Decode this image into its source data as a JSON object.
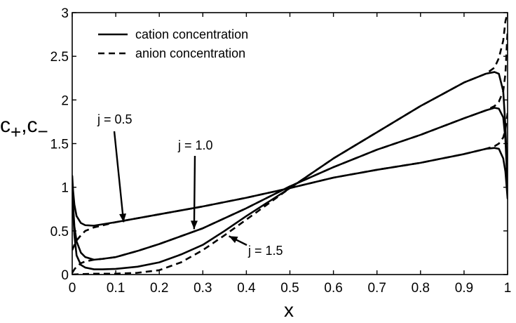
{
  "chart_data": {
    "type": "line",
    "xlabel": "x",
    "ylabel_main": "c",
    "ylabel_sub1": "+",
    "ylabel_sep": ",c",
    "ylabel_sub2": "−",
    "xlim": [
      0,
      1
    ],
    "ylim": [
      0,
      3
    ],
    "x_ticks": [
      0,
      0.1,
      0.2,
      0.3,
      0.4,
      0.5,
      0.6,
      0.7,
      0.8,
      0.9,
      1
    ],
    "x_tick_labels": [
      "0",
      "0.1",
      "0.2",
      "0.3",
      "0.4",
      "0.5",
      "0.6",
      "0.7",
      "0.8",
      "0.9",
      "1"
    ],
    "y_ticks": [
      0,
      0.5,
      1,
      1.5,
      2,
      2.5,
      3
    ],
    "y_tick_labels": [
      "0",
      "0.5",
      "1",
      "1.5",
      "2",
      "2.5",
      "3"
    ],
    "grid": false,
    "legend_position": "top-left",
    "legend": [
      {
        "label": "cation concentration",
        "style": "solid"
      },
      {
        "label": "anion concentration",
        "style": "dashed"
      }
    ],
    "annotations": [
      {
        "text": "j = 0.5",
        "points_to": [
          0.118,
          0.6
        ]
      },
      {
        "text": "j = 1.0",
        "points_to": [
          0.28,
          0.52
        ]
      },
      {
        "text": "j = 1.5",
        "points_to": [
          0.36,
          0.44
        ]
      }
    ],
    "series": [
      {
        "style": "solid",
        "x": [
          0,
          0.002,
          0.005,
          0.01,
          0.02,
          0.03,
          0.05,
          0.1,
          0.2,
          0.3,
          0.4,
          0.5,
          0.6,
          0.7,
          0.8,
          0.9,
          0.95,
          0.97,
          0.98,
          0.99,
          0.995,
          1.0
        ],
        "y": [
          1.13,
          0.96,
          0.8,
          0.67,
          0.59,
          0.565,
          0.56,
          0.6,
          0.69,
          0.78,
          0.88,
          0.99,
          1.11,
          1.2,
          1.28,
          1.38,
          1.44,
          1.45,
          1.44,
          1.33,
          1.18,
          0.87
        ]
      },
      {
        "style": "dashed",
        "x": [
          0,
          0.005,
          0.01,
          0.02,
          0.03,
          0.05,
          0.1,
          0.2,
          0.3,
          0.4,
          0.5,
          0.6,
          0.7,
          0.8,
          0.9,
          0.95,
          0.97,
          0.98,
          0.99,
          0.995,
          1.0
        ],
        "y": [
          0.28,
          0.34,
          0.39,
          0.45,
          0.5,
          0.54,
          0.6,
          0.69,
          0.78,
          0.88,
          0.99,
          1.11,
          1.2,
          1.28,
          1.38,
          1.44,
          1.47,
          1.5,
          1.57,
          1.66,
          1.85
        ]
      },
      {
        "style": "solid",
        "x": [
          0,
          0.002,
          0.005,
          0.01,
          0.02,
          0.03,
          0.05,
          0.07,
          0.1,
          0.15,
          0.2,
          0.3,
          0.4,
          0.5,
          0.6,
          0.7,
          0.8,
          0.9,
          0.95,
          0.97,
          0.98,
          0.99,
          0.995,
          1.0
        ],
        "y": [
          1.05,
          0.8,
          0.55,
          0.38,
          0.25,
          0.2,
          0.17,
          0.18,
          0.2,
          0.27,
          0.35,
          0.53,
          0.76,
          1.01,
          1.23,
          1.43,
          1.6,
          1.79,
          1.88,
          1.91,
          1.9,
          1.8,
          1.55,
          1.0
        ]
      },
      {
        "style": "dashed",
        "x": [
          0,
          0.005,
          0.01,
          0.02,
          0.03,
          0.05,
          0.07,
          0.1,
          0.15,
          0.2,
          0.3,
          0.4,
          0.5,
          0.6,
          0.7,
          0.8,
          0.9,
          0.95,
          0.97,
          0.98,
          0.99,
          0.995,
          1.0
        ],
        "y": [
          0.02,
          0.06,
          0.09,
          0.13,
          0.15,
          0.17,
          0.18,
          0.2,
          0.27,
          0.35,
          0.53,
          0.76,
          1.01,
          1.23,
          1.43,
          1.6,
          1.79,
          1.88,
          1.93,
          1.98,
          2.1,
          2.3,
          2.8
        ]
      },
      {
        "style": "solid",
        "x": [
          0,
          0.005,
          0.01,
          0.02,
          0.03,
          0.05,
          0.07,
          0.1,
          0.15,
          0.2,
          0.25,
          0.3,
          0.35,
          0.4,
          0.5,
          0.6,
          0.7,
          0.8,
          0.9,
          0.95,
          0.97,
          0.98,
          0.99,
          0.995,
          1.0
        ],
        "y": [
          0.95,
          0.45,
          0.22,
          0.11,
          0.08,
          0.06,
          0.06,
          0.065,
          0.09,
          0.14,
          0.23,
          0.34,
          0.5,
          0.67,
          0.99,
          1.33,
          1.63,
          1.93,
          2.2,
          2.3,
          2.32,
          2.3,
          2.1,
          1.7,
          1.0
        ]
      },
      {
        "style": "dashed",
        "x": [
          0,
          0.02,
          0.05,
          0.1,
          0.15,
          0.2,
          0.25,
          0.3,
          0.35,
          0.4,
          0.5,
          0.6,
          0.7,
          0.8,
          0.9,
          0.95,
          0.97,
          0.98,
          0.99,
          0.995,
          1.0
        ],
        "y": [
          0.0,
          0.005,
          0.01,
          0.01,
          0.02,
          0.05,
          0.14,
          0.28,
          0.45,
          0.63,
          0.99,
          1.33,
          1.63,
          1.93,
          2.2,
          2.3,
          2.37,
          2.48,
          2.68,
          2.9,
          3.0
        ]
      }
    ]
  }
}
